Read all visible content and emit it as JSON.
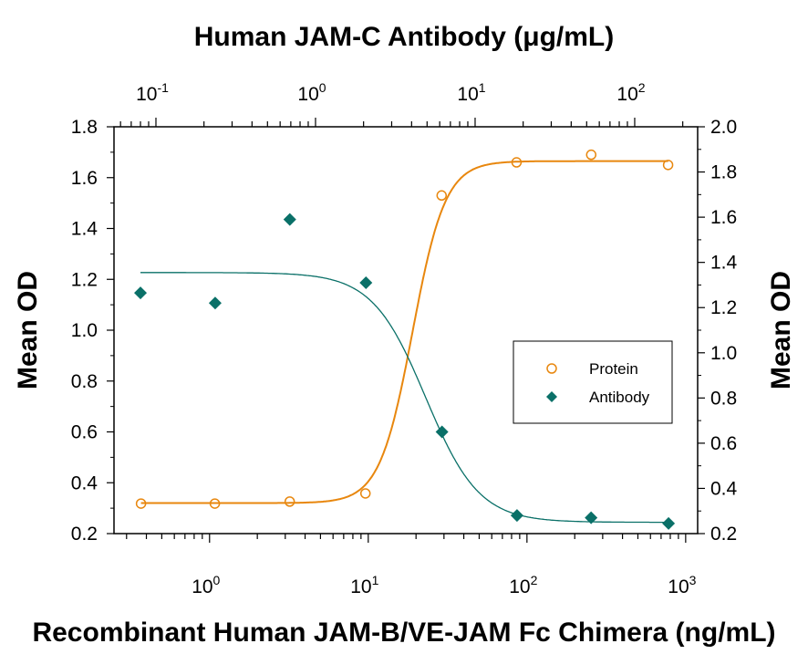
{
  "chart_data": {
    "type": "scatter",
    "title": "Human JAM-C Antibody (μg/mL)",
    "xlabel": "Recombinant Human JAM-B/VE-JAM Fc Chimera (ng/mL)",
    "ylabel": "Mean OD",
    "y2label": "Mean OD",
    "xscale": "log",
    "x2scale": "log",
    "xlim": [
      0.25,
      1190
    ],
    "x2lim": [
      0.0546,
      248
    ],
    "ylim": [
      0.2,
      1.8
    ],
    "y2lim": [
      0.2,
      2.0
    ],
    "x_ticks": [
      "10^0",
      "10^1",
      "10^2",
      "10^3"
    ],
    "x2_ticks": [
      "10^-1",
      "10^0",
      "10^1",
      "10^2"
    ],
    "y_ticks": [
      "0.2",
      "0.4",
      "0.6",
      "0.8",
      "1.0",
      "1.2",
      "1.4",
      "1.6",
      "1.8"
    ],
    "y2_ticks": [
      "0.2",
      "0.4",
      "0.6",
      "0.8",
      "1.0",
      "1.2",
      "1.4",
      "1.6",
      "1.8",
      "2.0"
    ],
    "grid": false,
    "legend_placement": "right",
    "series": [
      {
        "name": "Protein",
        "axis": "bottom-left",
        "marker": "open-circle",
        "color": "#E8870E",
        "x": [
          0.37,
          1.08,
          3.2,
          9.6,
          29,
          86,
          254,
          775
        ],
        "y": [
          0.318,
          0.318,
          0.326,
          0.358,
          1.53,
          1.66,
          1.69,
          1.65
        ],
        "fit": {
          "bottom": 0.32,
          "top": 1.665,
          "ec50": 19,
          "hill": 4.2
        }
      },
      {
        "name": "Antibody",
        "axis": "top-right",
        "marker": "filled-diamond",
        "color": "#0A7068",
        "x": [
          0.08,
          0.235,
          0.69,
          2.07,
          6.2,
          18.3,
          53.3,
          163
        ],
        "y": [
          1.265,
          1.22,
          1.59,
          1.31,
          0.65,
          0.28,
          0.27,
          0.245
        ],
        "fit": {
          "top": 1.355,
          "bottom": 0.25,
          "ic50": 4.9,
          "hill": 2.6
        }
      }
    ]
  }
}
